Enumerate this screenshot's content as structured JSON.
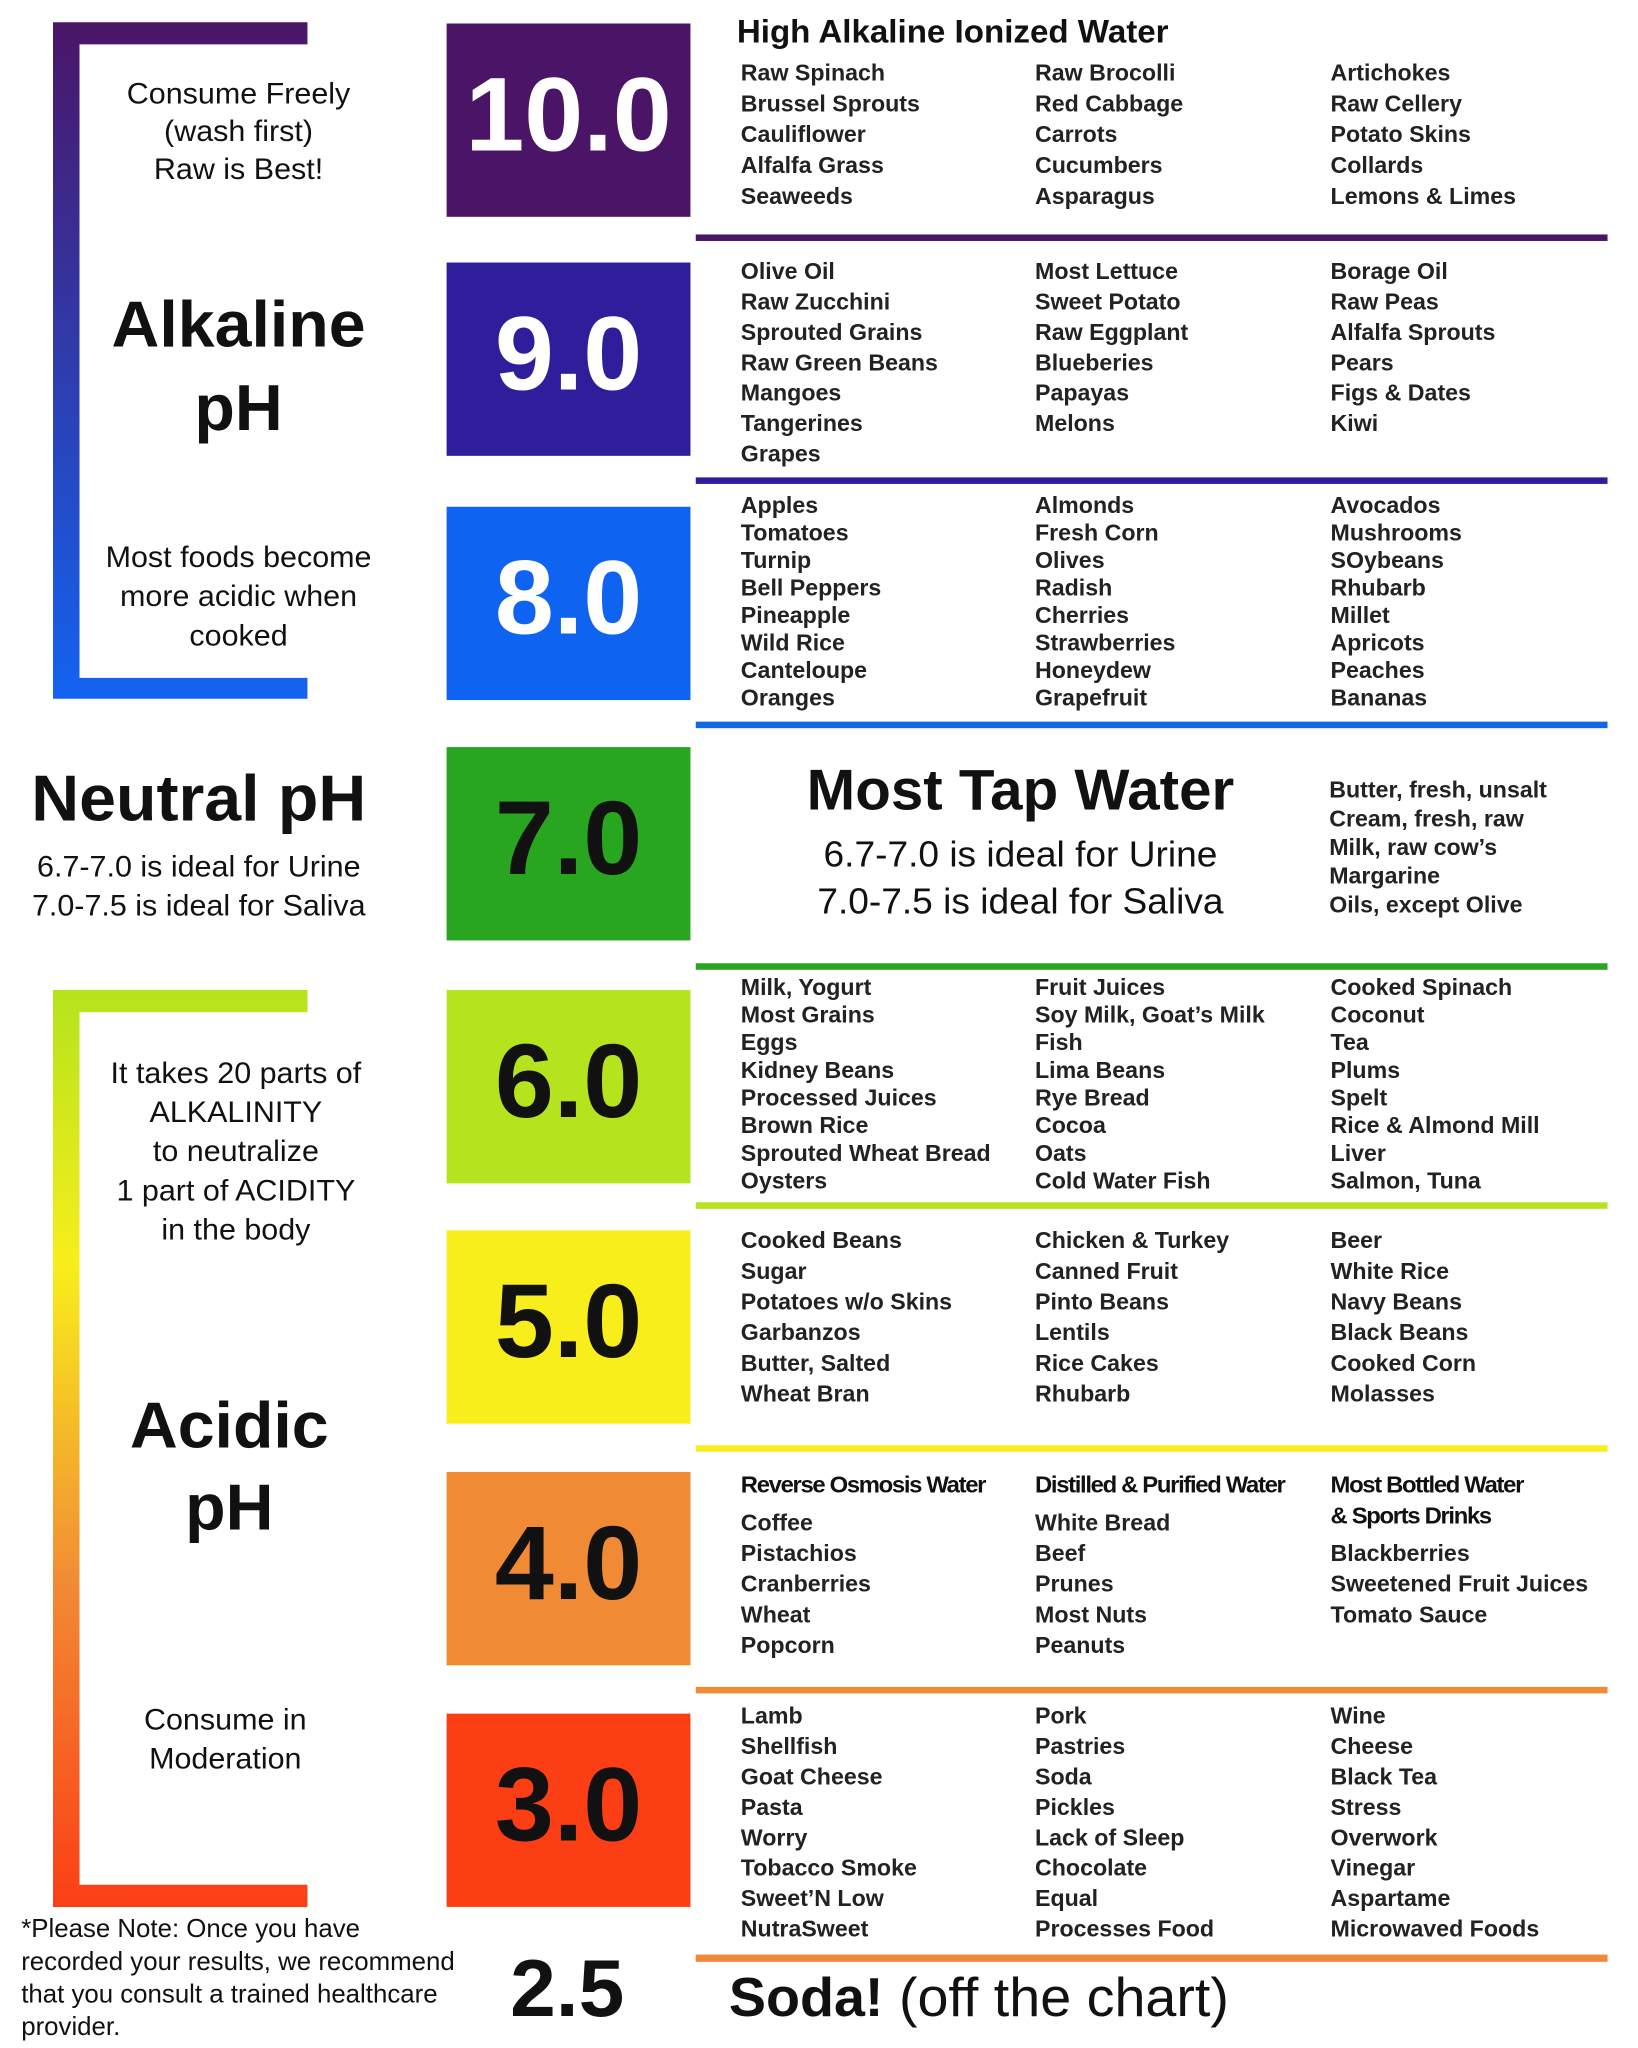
{
  "left": {
    "alkaline_note": [
      "Consume Freely",
      "(wash first)",
      "Raw is Best!"
    ],
    "alkaline_title": [
      "Alkaline",
      "pH"
    ],
    "cooked_note": [
      "Most foods become",
      "more acidic when",
      "cooked"
    ],
    "neutral_title": "Neutral pH",
    "neutral_lines": [
      "6.7-7.0 is ideal for Urine",
      "7.0-7.5 is ideal for Saliva"
    ],
    "ratio_note": [
      "It takes 20 parts of",
      "ALKALINITY",
      "to neutralize",
      "1 part of ACIDITY",
      "in the body"
    ],
    "acidic_title": [
      "Acidic",
      "pH"
    ],
    "moderation_note": [
      "Consume in",
      "Moderation"
    ],
    "disclaimer": [
      "*Please Note: Once you have",
      "recorded your results, we recommend",
      "that you consult a trained healthcare",
      "provider."
    ]
  },
  "rows": [
    {
      "ph": "10.0",
      "color": "#4b1567",
      "text_color": "#ffffff",
      "rule_color": "#4b1567",
      "title": "High Alkaline Ionized Water",
      "columns": [
        {
          "items": [
            "Raw Spinach",
            "Brussel Sprouts",
            "Cauliflower",
            "Alfalfa Grass",
            "Seaweeds"
          ]
        },
        {
          "items": [
            "Raw Brocolli",
            "Red Cabbage",
            "Carrots",
            "Cucumbers",
            "Asparagus"
          ]
        },
        {
          "items": [
            "Artichokes",
            "Raw Cellery",
            "Potato Skins",
            "Collards",
            "Lemons & Limes"
          ]
        }
      ]
    },
    {
      "ph": "9.0",
      "color": "#2e1e9b",
      "text_color": "#ffffff",
      "rule_color": "#2e1e9b",
      "columns": [
        {
          "items": [
            "Olive Oil",
            "Raw Zucchini",
            "Sprouted Grains",
            "Raw Green Beans",
            "Mangoes",
            "Tangerines",
            "Grapes"
          ]
        },
        {
          "items": [
            "Most Lettuce",
            "Sweet Potato",
            "Raw Eggplant",
            "Blueberies",
            "Papayas",
            "Melons"
          ]
        },
        {
          "items": [
            "Borage Oil",
            "Raw Peas",
            "Alfalfa Sprouts",
            "Pears",
            "Figs & Dates",
            "Kiwi"
          ]
        }
      ]
    },
    {
      "ph": "8.0",
      "color": "#0f63f1",
      "text_color": "#ffffff",
      "rule_color": "#1467e2",
      "columns": [
        {
          "items": [
            "Apples",
            "Tomatoes",
            "Turnip",
            "Bell Peppers",
            "Pineapple",
            "Wild Rice",
            "Canteloupe",
            "Oranges"
          ]
        },
        {
          "items": [
            "Almonds",
            "Fresh Corn",
            "Olives",
            "Radish",
            "Cherries",
            "Strawberries",
            "Honeydew",
            "Grapefruit"
          ]
        },
        {
          "items": [
            "Avocados",
            "Mushrooms",
            "SOybeans",
            "Rhubarb",
            "Millet",
            "Apricots",
            "Peaches",
            "Bananas"
          ]
        }
      ]
    },
    {
      "ph": "7.0",
      "color": "#28a61f",
      "text_color": "#111111",
      "rule_color": "#28a61f",
      "big_title": "Most Tap Water",
      "big_lines": [
        "6.7-7.0 is ideal for Urine",
        "7.0-7.5 is ideal for Saliva"
      ],
      "columns": [
        {
          "items": [
            "Butter, fresh, unsalt",
            "Cream, fresh, raw",
            "Milk, raw cow’s",
            "Margarine",
            "Oils, except Olive"
          ]
        }
      ]
    },
    {
      "ph": "6.0",
      "color": "#b5e31d",
      "text_color": "#111111",
      "rule_color": "#b5e31d",
      "columns": [
        {
          "items": [
            "Milk, Yogurt",
            "Most Grains",
            "Eggs",
            "Kidney Beans",
            "Processed Juices",
            "Brown Rice",
            "Sprouted Wheat Bread",
            "Oysters"
          ]
        },
        {
          "items": [
            "Fruit Juices",
            "Soy Milk, Goat’s Milk",
            "Fish",
            "Lima Beans",
            "Rye Bread",
            "Cocoa",
            "Oats",
            "Cold Water Fish"
          ]
        },
        {
          "items": [
            "Cooked Spinach",
            "Coconut",
            "Tea",
            "Plums",
            "Spelt",
            "Rice & Almond Mill",
            "Liver",
            "Salmon, Tuna"
          ]
        }
      ]
    },
    {
      "ph": "5.0",
      "color": "#f8ee1b",
      "text_color": "#111111",
      "rule_color": "#f8ee1b",
      "columns": [
        {
          "items": [
            "Cooked Beans",
            "Sugar",
            "Potatoes w/o Skins",
            "Garbanzos",
            "Butter, Salted",
            "Wheat Bran"
          ]
        },
        {
          "items": [
            "Chicken & Turkey",
            "Canned Fruit",
            "Pinto Beans",
            "Lentils",
            "Rice Cakes",
            "Rhubarb"
          ]
        },
        {
          "items": [
            "Beer",
            "White Rice",
            "Navy Beans",
            "Black Beans",
            "Cooked Corn",
            "Molasses"
          ]
        }
      ]
    },
    {
      "ph": "4.0",
      "color": "#f18a35",
      "text_color": "#111111",
      "rule_color": "#f18a35",
      "columns": [
        {
          "header": [
            "Reverse Osmosis Water"
          ],
          "items": [
            "Coffee",
            "Pistachios",
            "Cranberries",
            "Wheat",
            "Popcorn"
          ]
        },
        {
          "header": [
            "Distilled & Purified Water"
          ],
          "items": [
            "White Bread",
            "Beef",
            "Prunes",
            "Most Nuts",
            "Peanuts"
          ]
        },
        {
          "header": [
            "Most Bottled Water",
            "& Sports Drinks"
          ],
          "items": [
            "Blackberries",
            "Sweetened Fruit Juices",
            "Tomato Sauce"
          ]
        }
      ]
    },
    {
      "ph": "3.0",
      "color": "#fc3e15",
      "text_color": "#111111",
      "rule_color": "#f0883a",
      "columns": [
        {
          "items": [
            "Lamb",
            "Shellfish",
            "Goat Cheese",
            "Pasta",
            "Worry",
            "Tobacco Smoke",
            "Sweet’N Low",
            "NutraSweet"
          ]
        },
        {
          "items": [
            "Pork",
            "Pastries",
            "Soda",
            "Pickles",
            "Lack of Sleep",
            "Chocolate",
            "Equal",
            "Processes Food"
          ]
        },
        {
          "items": [
            "Wine",
            "Cheese",
            "Black Tea",
            "Stress",
            "Overwork",
            "Vinegar",
            "Aspartame",
            "Microwaved Foods"
          ]
        }
      ]
    }
  ],
  "soda": {
    "ph": "2.5",
    "label": "Soda!",
    "note": "(off the chart)"
  }
}
